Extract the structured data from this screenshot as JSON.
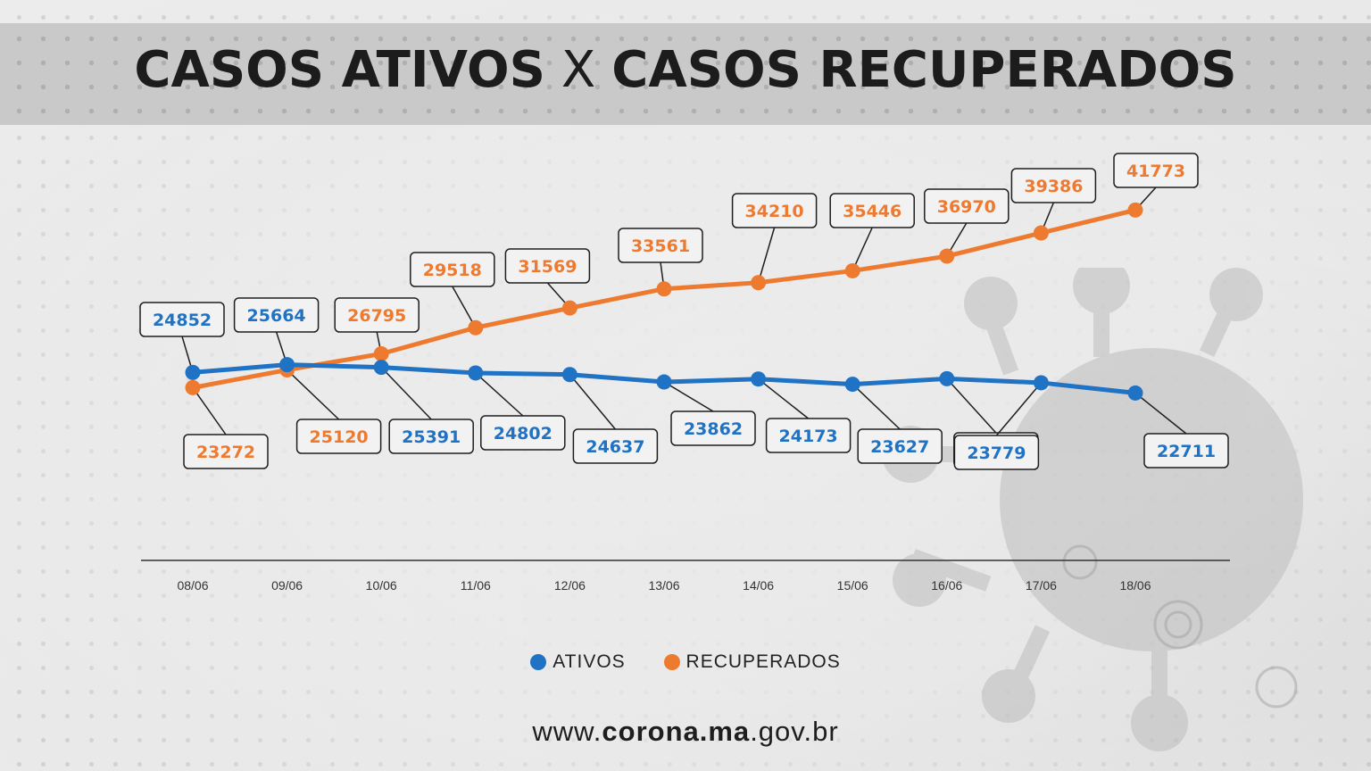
{
  "title": {
    "part1": "CASOS ATIVOS",
    "separator": "X",
    "part2": "CASOS RECUPERADOS"
  },
  "colors": {
    "ativos": "#1f72c4",
    "recuperados": "#ee7a30",
    "axis": "#333333",
    "label_border": "#1e1e1e"
  },
  "chart_data": {
    "type": "line",
    "title": "CASOS ATIVOS X CASOS RECUPERADOS",
    "x": [
      "08/06",
      "09/06",
      "10/06",
      "11/06",
      "12/06",
      "13/06",
      "14/06",
      "15/06",
      "16/06",
      "17/06",
      "18/06"
    ],
    "series": [
      {
        "name": "ATIVOS",
        "values": [
          24852,
          25664,
          25391,
          24802,
          24637,
          23862,
          24173,
          23627,
          24204,
          23779,
          22711
        ]
      },
      {
        "name": "RECUPERADOS",
        "values": [
          23272,
          25120,
          26795,
          29518,
          31569,
          33561,
          34210,
          35446,
          36970,
          39386,
          41773
        ]
      }
    ],
    "xlabel": "",
    "ylabel": "",
    "legend_position": "bottom-center",
    "grid": false,
    "data_labels": true
  },
  "legend": [
    {
      "label": "ATIVOS",
      "color": "#1f72c4"
    },
    {
      "label": "RECUPERADOS",
      "color": "#ee7a30"
    }
  ],
  "footer": {
    "prefix": "www.",
    "bold": "corona.ma",
    "suffix": ".gov.br"
  }
}
